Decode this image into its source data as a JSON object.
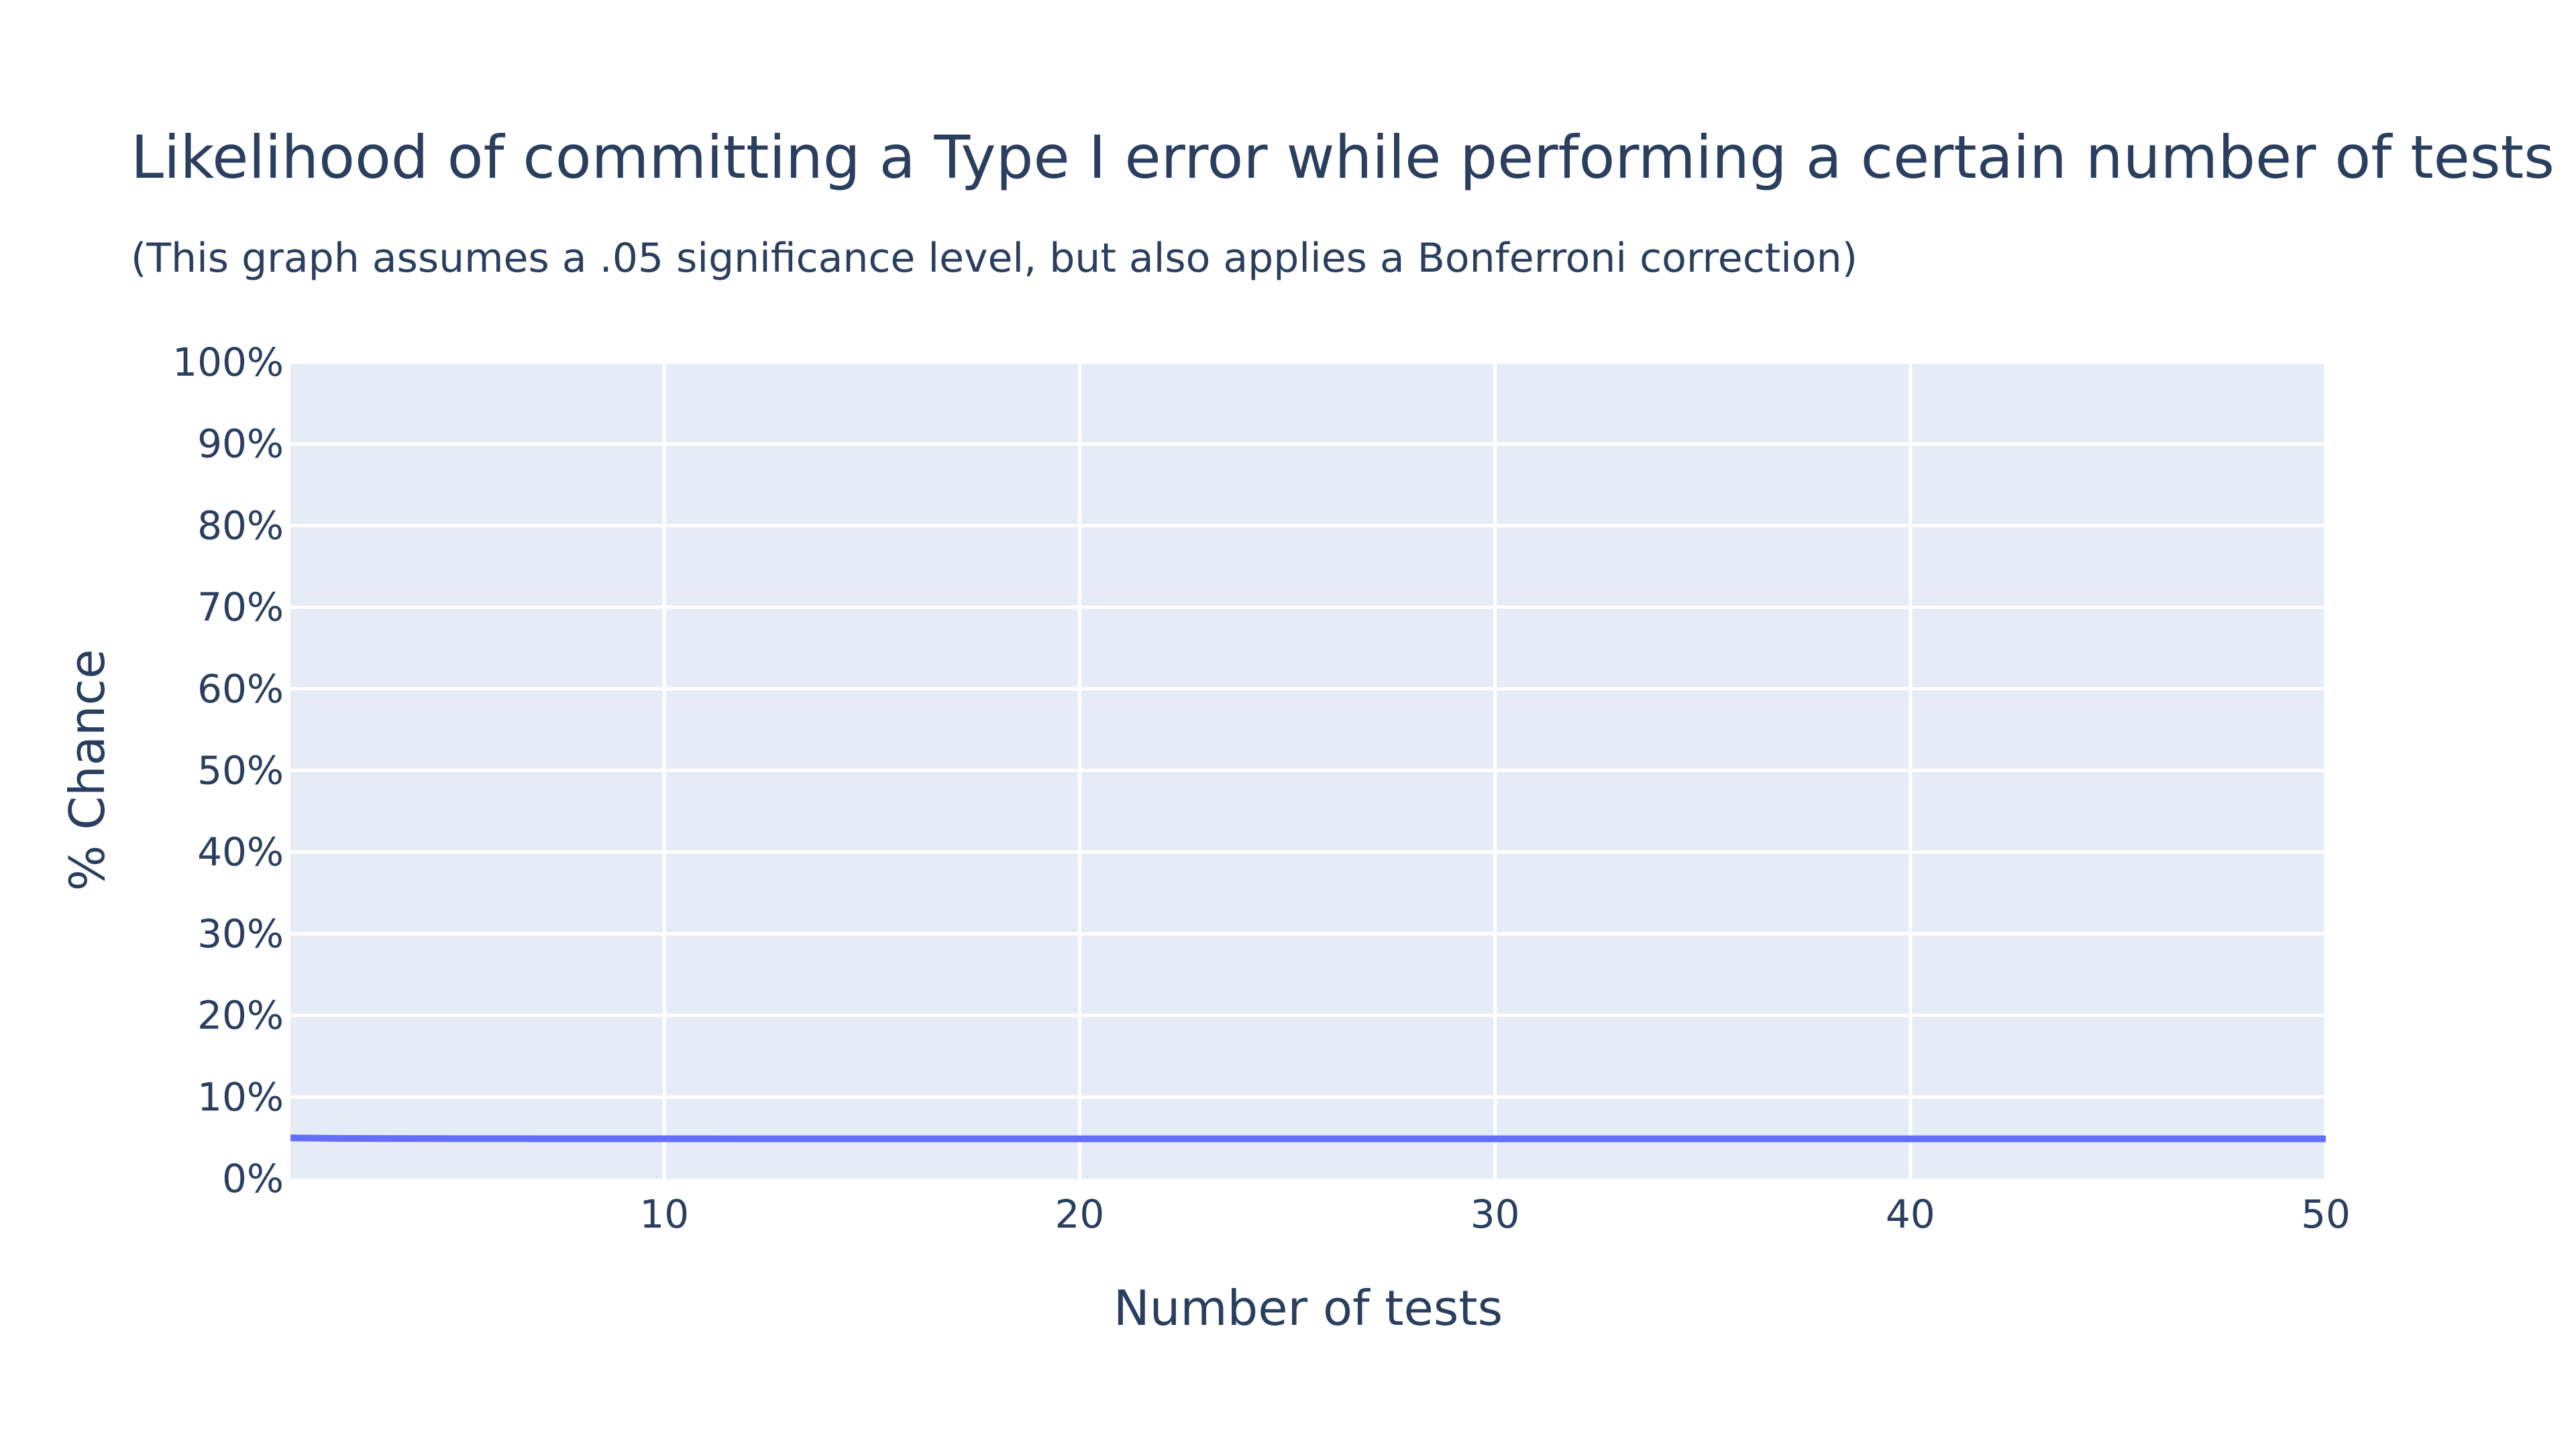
{
  "chart_data": {
    "type": "line",
    "title": "Likelihood of committing a Type I error while performing a certain number of tests",
    "subtitle": "(This graph assumes a .05 significance level, but also applies a Bonferroni correction)",
    "xlabel": "Number of tests",
    "ylabel": "% Chance",
    "xlim": [
      1,
      50
    ],
    "ylim": [
      0,
      100
    ],
    "x_ticks": [
      10,
      20,
      30,
      40,
      50
    ],
    "y_ticks": [
      0,
      10,
      20,
      30,
      40,
      50,
      60,
      70,
      80,
      90,
      100
    ],
    "y_tick_suffix": "%",
    "grid": true,
    "colors": {
      "line": "#636efa",
      "plot_bg": "#e5ecf6",
      "grid": "#ffffff",
      "text": "#2a3f5f"
    },
    "series": [
      {
        "x": [
          1,
          2,
          3,
          4,
          5,
          6,
          7,
          8,
          9,
          10,
          11,
          12,
          13,
          14,
          15,
          16,
          17,
          18,
          19,
          20,
          21,
          22,
          23,
          24,
          25,
          26,
          27,
          28,
          29,
          30,
          31,
          32,
          33,
          34,
          35,
          36,
          37,
          38,
          39,
          40,
          41,
          42,
          43,
          44,
          45,
          46,
          47,
          48,
          49,
          50
        ],
        "y": [
          5.0,
          4.94,
          4.92,
          4.91,
          4.9,
          4.9,
          4.89,
          4.89,
          4.89,
          4.89,
          4.89,
          4.88,
          4.88,
          4.88,
          4.88,
          4.88,
          4.88,
          4.88,
          4.88,
          4.88,
          4.88,
          4.88,
          4.88,
          4.88,
          4.88,
          4.88,
          4.88,
          4.88,
          4.88,
          4.88,
          4.88,
          4.88,
          4.88,
          4.88,
          4.88,
          4.88,
          4.88,
          4.88,
          4.88,
          4.88,
          4.88,
          4.88,
          4.88,
          4.88,
          4.88,
          4.88,
          4.88,
          4.88,
          4.88,
          4.88
        ]
      }
    ]
  }
}
